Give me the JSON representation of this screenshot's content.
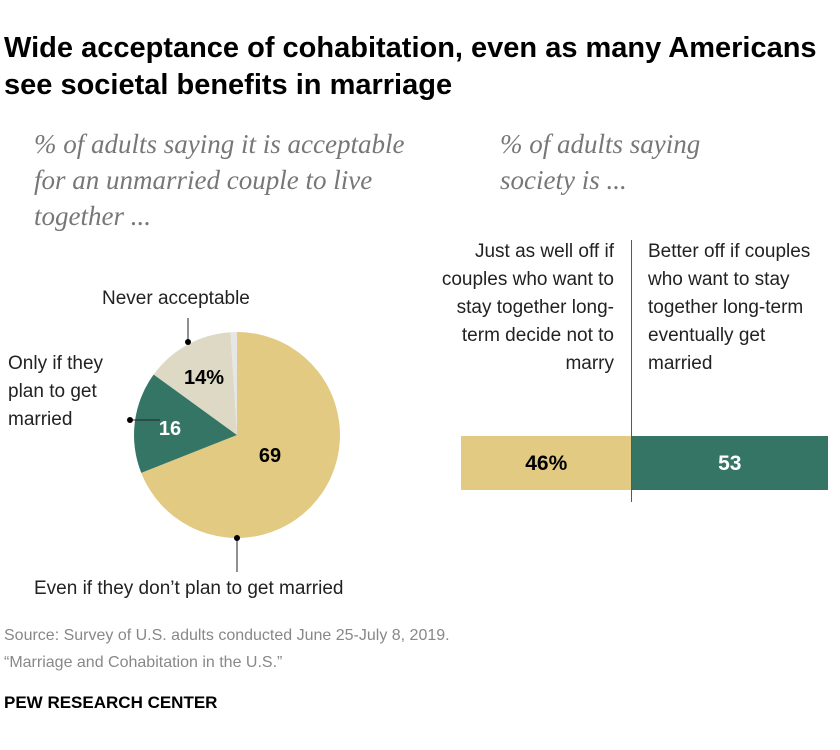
{
  "title": "Wide acceptance of cohabitation, even as many Americans see societal benefits in marriage",
  "colors": {
    "tan": "#e3ca82",
    "green": "#357566",
    "beige": "#ddd9c4",
    "gray": "#e6e6e6"
  },
  "chart_data": [
    {
      "type": "pie",
      "subtitle": "% of adults saying it is acceptable for an unmarried couple to live together ...",
      "slices": [
        {
          "label": "Even if they don’t plan to get married",
          "value": 69,
          "data_label": "69",
          "color": "#e3ca82"
        },
        {
          "label": "Only if they plan to get married",
          "value": 16,
          "data_label": "16",
          "color": "#357566"
        },
        {
          "label": "Never acceptable",
          "value": 14,
          "data_label": "14%",
          "color": "#ddd9c4"
        },
        {
          "label": "",
          "value": 1,
          "data_label": "",
          "color": "#e6e6e6"
        }
      ],
      "start": "12 o'clock, clockwise"
    },
    {
      "type": "bar",
      "orientation": "horizontal stacked",
      "subtitle": "% of adults saying society is ...",
      "segments": [
        {
          "label": "Just as well off if couples who want to stay together long-term decide not to marry",
          "value": 46,
          "data_label": "46%",
          "color": "#e3ca82"
        },
        {
          "label": "Better off if couples who want to stay together long-term eventually get married",
          "value": 53,
          "data_label": "53",
          "color": "#357566"
        }
      ]
    }
  ],
  "source": "Source: Survey of U.S. adults conducted June 25-July 8, 2019.",
  "report": "“Marriage and Cohabitation in the U.S.”",
  "brand": "PEW RESEARCH CENTER"
}
